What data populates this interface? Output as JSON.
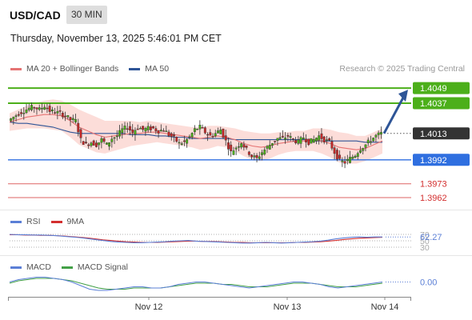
{
  "header": {
    "symbol": "USD/CAD",
    "timeframe": "30 MIN",
    "datetime": "Thursday, November 13, 2025 5:46:01 PM CET",
    "credit": "Research © 2025 Trading Central"
  },
  "legends": {
    "price": [
      {
        "label": "MA 20 + Bollinger Bands",
        "color": "#e57373"
      },
      {
        "label": "MA 50",
        "color": "#2e5597"
      }
    ],
    "rsi": [
      {
        "label": "RSI",
        "color": "#5b7fd6"
      },
      {
        "label": "9MA",
        "color": "#d32f2f"
      }
    ],
    "macd": [
      {
        "label": "MACD",
        "color": "#5b7fd6"
      },
      {
        "label": "MACD Signal",
        "color": "#43a047"
      }
    ]
  },
  "chart_data": [
    {
      "type": "candlestick",
      "name": "price",
      "ylim": [
        1.3955,
        1.4058
      ],
      "levels": [
        {
          "value": 1.4049,
          "label": "1.4049",
          "color": "#4caf1a",
          "kind": "resistance"
        },
        {
          "value": 1.4037,
          "label": "1.4037",
          "color": "#4caf1a",
          "kind": "resistance"
        },
        {
          "value": 1.4013,
          "label": "1.4013",
          "color": "#333333",
          "kind": "last-price"
        },
        {
          "value": 1.3992,
          "label": "1.3992",
          "color": "#2f6fe0",
          "kind": "pivot"
        },
        {
          "value": 1.3973,
          "label": "1.3973",
          "color": "#d32f2f",
          "kind": "support"
        },
        {
          "value": 1.3962,
          "label": "1.3962",
          "color": "#d32f2f",
          "kind": "support"
        }
      ],
      "target_arrow": {
        "from": 1.4013,
        "to": 1.4049
      },
      "close_path": [
        1.4023,
        1.4026,
        1.4029,
        1.4031,
        1.4033,
        1.4034,
        1.4032,
        1.4035,
        1.4031,
        1.403,
        1.4029,
        1.4027,
        1.4024,
        1.4023,
        1.4008,
        1.4004,
        1.4006,
        1.4004,
        1.4008,
        1.4004,
        1.4009,
        1.4011,
        1.4016,
        1.4018,
        1.4014,
        1.4018,
        1.4016,
        1.4017,
        1.4017,
        1.4015,
        1.4016,
        1.4012,
        1.4009,
        1.4005,
        1.4006,
        1.401,
        1.4016,
        1.4018,
        1.4014,
        1.4011,
        1.4013,
        1.4016,
        1.4007,
        1.3998,
        1.4002,
        1.4006,
        1.4,
        1.3995,
        1.3993,
        1.3998,
        1.4002,
        1.4006,
        1.4009,
        1.4009,
        1.4011,
        1.4008,
        1.4006,
        1.401,
        1.4006,
        1.4008,
        1.4011,
        1.4008,
        1.4006,
        1.3998,
        1.3991,
        1.399,
        1.3993,
        1.3996,
        1.4001,
        1.4004,
        1.4008,
        1.4011,
        1.4013
      ],
      "ma20": [
        1.4022,
        1.4024,
        1.4026,
        1.4027,
        1.4028,
        1.4028,
        1.4027,
        1.4023,
        1.4018,
        1.4015,
        1.4012,
        1.401,
        1.4011,
        1.4012,
        1.4013,
        1.4013,
        1.4014,
        1.4014,
        1.4013,
        1.4012,
        1.4011,
        1.401,
        1.4009,
        1.401,
        1.4011,
        1.401,
        1.4008,
        1.4005,
        1.4003,
        1.4002,
        1.4003,
        1.4005,
        1.4006,
        1.4007,
        1.4007,
        1.4008,
        1.4007,
        1.4005,
        1.4002,
        1.4001,
        1.4,
        1.4001,
        1.4004,
        1.4007
      ],
      "ma50": [
        1.4022,
        1.4021,
        1.4021,
        1.402,
        1.4019,
        1.4018,
        1.4016,
        1.4014,
        1.4013,
        1.4013,
        1.4013,
        1.4013,
        1.4013,
        1.4013,
        1.4012,
        1.4012,
        1.4012,
        1.4011,
        1.4011,
        1.401,
        1.401,
        1.4009,
        1.4009,
        1.4009,
        1.4009,
        1.4009,
        1.4008,
        1.4008,
        1.4008,
        1.4008,
        1.4008,
        1.4008,
        1.4008,
        1.4008,
        1.4008,
        1.4007,
        1.4007,
        1.4007,
        1.4007,
        1.4007,
        1.4007,
        1.4006,
        1.4006,
        1.4006
      ]
    },
    {
      "type": "line",
      "name": "rsi",
      "ylim": [
        20,
        80
      ],
      "ticks": [
        70,
        50,
        30
      ],
      "last_label": "62.27",
      "rsi": [
        70,
        69,
        69,
        68,
        68,
        67,
        66,
        64,
        62,
        60,
        57,
        54,
        51,
        48,
        46,
        45,
        44,
        44,
        45,
        46,
        47,
        49,
        50,
        51,
        49,
        48,
        47,
        46,
        45,
        44,
        43,
        43,
        44,
        45,
        44,
        43,
        44,
        45,
        46,
        47,
        49,
        52,
        56,
        59,
        61,
        62,
        61,
        62,
        62
      ],
      "ma9": [
        69,
        69,
        68,
        68,
        67,
        67,
        66,
        65,
        63,
        61,
        59,
        56,
        53,
        51,
        49,
        47,
        46,
        45,
        45,
        45,
        46,
        47,
        48,
        49,
        49,
        48,
        48,
        47,
        46,
        45,
        45,
        44,
        44,
        44,
        44,
        44,
        44,
        45,
        45,
        46,
        47,
        49,
        51,
        54,
        56,
        58,
        59,
        60,
        61
      ]
    },
    {
      "type": "line",
      "name": "macd",
      "ylim": [
        -0.0008,
        0.0008
      ],
      "last_label": "0.00",
      "macd": [
        0.0001,
        0.0003,
        0.0004,
        0.0005,
        0.0005,
        0.0004,
        0.0003,
        0.0001,
        -0.0002,
        -0.0005,
        -0.0006,
        -0.0006,
        -0.0005,
        -0.0004,
        -0.0003,
        -0.0003,
        -0.0004,
        -0.0004,
        -0.0003,
        -0.0001,
        0.0,
        0.0001,
        0.0001,
        0.0,
        -0.0001,
        -0.0002,
        -0.0003,
        -0.0004,
        -0.0003,
        -0.0002,
        -0.0001,
        0.0,
        0.0001,
        0.0001,
        0.0,
        -0.0001,
        -0.0003,
        -0.0004,
        -0.0003,
        -0.0002,
        -0.0001,
        0.0,
        0.0001
      ],
      "signal": [
        0.0,
        0.0002,
        0.0003,
        0.0004,
        0.0004,
        0.0004,
        0.0003,
        0.0002,
        0.0,
        -0.0002,
        -0.0004,
        -0.0005,
        -0.0005,
        -0.0005,
        -0.0004,
        -0.0004,
        -0.0004,
        -0.0004,
        -0.0003,
        -0.0002,
        -0.0001,
        0.0,
        0.0,
        0.0,
        -0.0001,
        -0.0001,
        -0.0002,
        -0.0003,
        -0.0003,
        -0.0003,
        -0.0002,
        -0.0001,
        0.0,
        0.0,
        0.0,
        -0.0001,
        -0.0002,
        -0.0003,
        -0.0003,
        -0.0003,
        -0.0002,
        -0.0001,
        0.0
      ]
    }
  ],
  "xaxis": {
    "labels": [
      "Nov 12",
      "Nov 13",
      "Nov 14"
    ]
  }
}
